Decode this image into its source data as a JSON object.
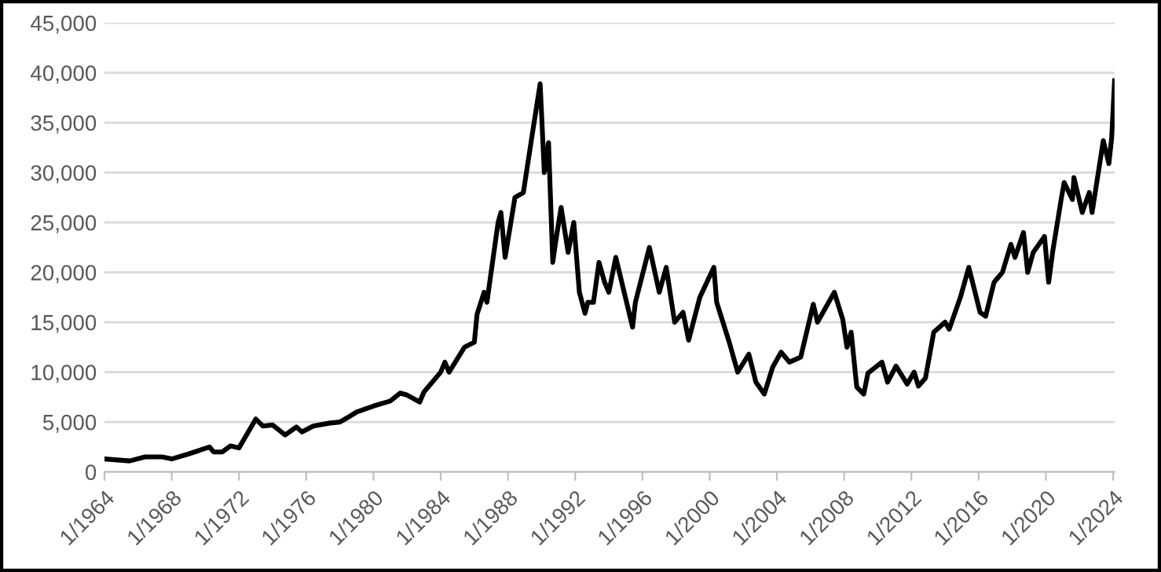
{
  "chart_data": {
    "type": "line",
    "x": [
      "1964-01",
      "1965-07",
      "1966-06",
      "1967-06",
      "1968-01",
      "1969-01",
      "1970-04",
      "1970-07",
      "1971-01",
      "1971-07",
      "1972-01",
      "1973-01",
      "1973-06",
      "1974-01",
      "1974-10",
      "1975-06",
      "1975-10",
      "1976-06",
      "1977-06",
      "1978-01",
      "1978-06",
      "1979-01",
      "1980-01",
      "1981-01",
      "1981-08",
      "1982-01",
      "1982-10",
      "1983-01",
      "1984-01",
      "1984-04",
      "1984-07",
      "1985-06",
      "1986-01",
      "1986-03",
      "1986-08",
      "1986-10",
      "1987-06",
      "1987-08",
      "1987-11",
      "1988-06",
      "1988-12",
      "1989-06",
      "1989-12",
      "1990-03",
      "1990-06",
      "1990-09",
      "1990-11",
      "1991-03",
      "1991-08",
      "1991-12",
      "1992-04",
      "1992-08",
      "1992-10",
      "1993-02",
      "1993-06",
      "1993-10",
      "1994-01",
      "1994-06",
      "1995-06",
      "1995-08",
      "1996-06",
      "1997-01",
      "1997-06",
      "1997-12",
      "1998-06",
      "1998-10",
      "1999-06",
      "2000-04",
      "2000-06",
      "2001-03",
      "2001-09",
      "2002-05",
      "2002-10",
      "2003-04",
      "2003-10",
      "2004-04",
      "2004-10",
      "2005-06",
      "2006-03",
      "2006-06",
      "2007-06",
      "2007-12",
      "2008-03",
      "2008-06",
      "2008-10",
      "2009-03",
      "2009-06",
      "2010-04",
      "2010-08",
      "2011-02",
      "2011-10",
      "2012-03",
      "2012-06",
      "2012-11",
      "2013-05",
      "2014-01",
      "2014-04",
      "2014-12",
      "2015-06",
      "2016-02",
      "2016-06",
      "2016-12",
      "2017-06",
      "2017-12",
      "2018-03",
      "2018-09",
      "2018-12",
      "2019-04",
      "2019-12",
      "2020-03",
      "2020-06",
      "2020-12",
      "2021-02",
      "2021-08",
      "2021-09",
      "2022-03",
      "2022-08",
      "2022-10",
      "2023-06",
      "2023-10",
      "2023-12",
      "2024-02"
    ],
    "series": [
      {
        "color": "#000000",
        "values": [
          1300,
          1100,
          1500,
          1500,
          1300,
          1800,
          2500,
          2000,
          2000,
          2600,
          2400,
          5300,
          4600,
          4700,
          3700,
          4500,
          4000,
          4600,
          4900,
          5000,
          5400,
          6000,
          6600,
          7100,
          7900,
          7700,
          7000,
          8000,
          10000,
          11000,
          10000,
          12500,
          13000,
          15800,
          18000,
          17000,
          25000,
          26000,
          21500,
          27500,
          28000,
          33500,
          38900,
          30000,
          33000,
          21000,
          23000,
          26500,
          22000,
          25000,
          18000,
          15900,
          17000,
          17000,
          21000,
          19000,
          18000,
          21500,
          14500,
          17000,
          22500,
          18000,
          20500,
          15000,
          16000,
          13200,
          17500,
          20500,
          17000,
          13000,
          10000,
          11800,
          9000,
          7800,
          10500,
          12000,
          11000,
          11500,
          16800,
          15000,
          18000,
          15300,
          12500,
          14000,
          8500,
          7800,
          9900,
          11000,
          9000,
          10600,
          8800,
          10000,
          8600,
          9400,
          14000,
          15000,
          14300,
          17500,
          20500,
          16000,
          15600,
          19000,
          20000,
          22800,
          21500,
          24000,
          20000,
          22000,
          23600,
          19000,
          22200,
          27400,
          29000,
          27300,
          29500,
          26000,
          28000,
          26000,
          33200,
          30900,
          33500,
          39200
        ]
      }
    ],
    "xlim": [
      "1964-01",
      "2024-02"
    ],
    "xticks": [
      {
        "value": "1964-01",
        "label": "1/1964"
      },
      {
        "value": "1968-01",
        "label": "1/1968"
      },
      {
        "value": "1972-01",
        "label": "1/1972"
      },
      {
        "value": "1976-01",
        "label": "1/1976"
      },
      {
        "value": "1980-01",
        "label": "1/1980"
      },
      {
        "value": "1984-01",
        "label": "1/1984"
      },
      {
        "value": "1988-01",
        "label": "1/1988"
      },
      {
        "value": "1992-01",
        "label": "1/1992"
      },
      {
        "value": "1996-01",
        "label": "1/1996"
      },
      {
        "value": "2000-01",
        "label": "1/2000"
      },
      {
        "value": "2004-01",
        "label": "1/2004"
      },
      {
        "value": "2008-01",
        "label": "1/2008"
      },
      {
        "value": "2012-01",
        "label": "1/2012"
      },
      {
        "value": "2016-01",
        "label": "1/2016"
      },
      {
        "value": "2020-01",
        "label": "1/2020"
      },
      {
        "value": "2024-01",
        "label": "1/2024"
      }
    ],
    "ylim": [
      0,
      45000
    ],
    "yticks": [
      {
        "value": 0,
        "label": "0"
      },
      {
        "value": 5000,
        "label": "5,000"
      },
      {
        "value": 10000,
        "label": "10,000"
      },
      {
        "value": 15000,
        "label": "15,000"
      },
      {
        "value": 20000,
        "label": "20,000"
      },
      {
        "value": 25000,
        "label": "25,000"
      },
      {
        "value": 30000,
        "label": "30,000"
      },
      {
        "value": 35000,
        "label": "35,000"
      },
      {
        "value": 40000,
        "label": "40,000"
      },
      {
        "value": 45000,
        "label": "45,000"
      }
    ],
    "grid": "y",
    "marker": "none",
    "line_style": "solid"
  }
}
